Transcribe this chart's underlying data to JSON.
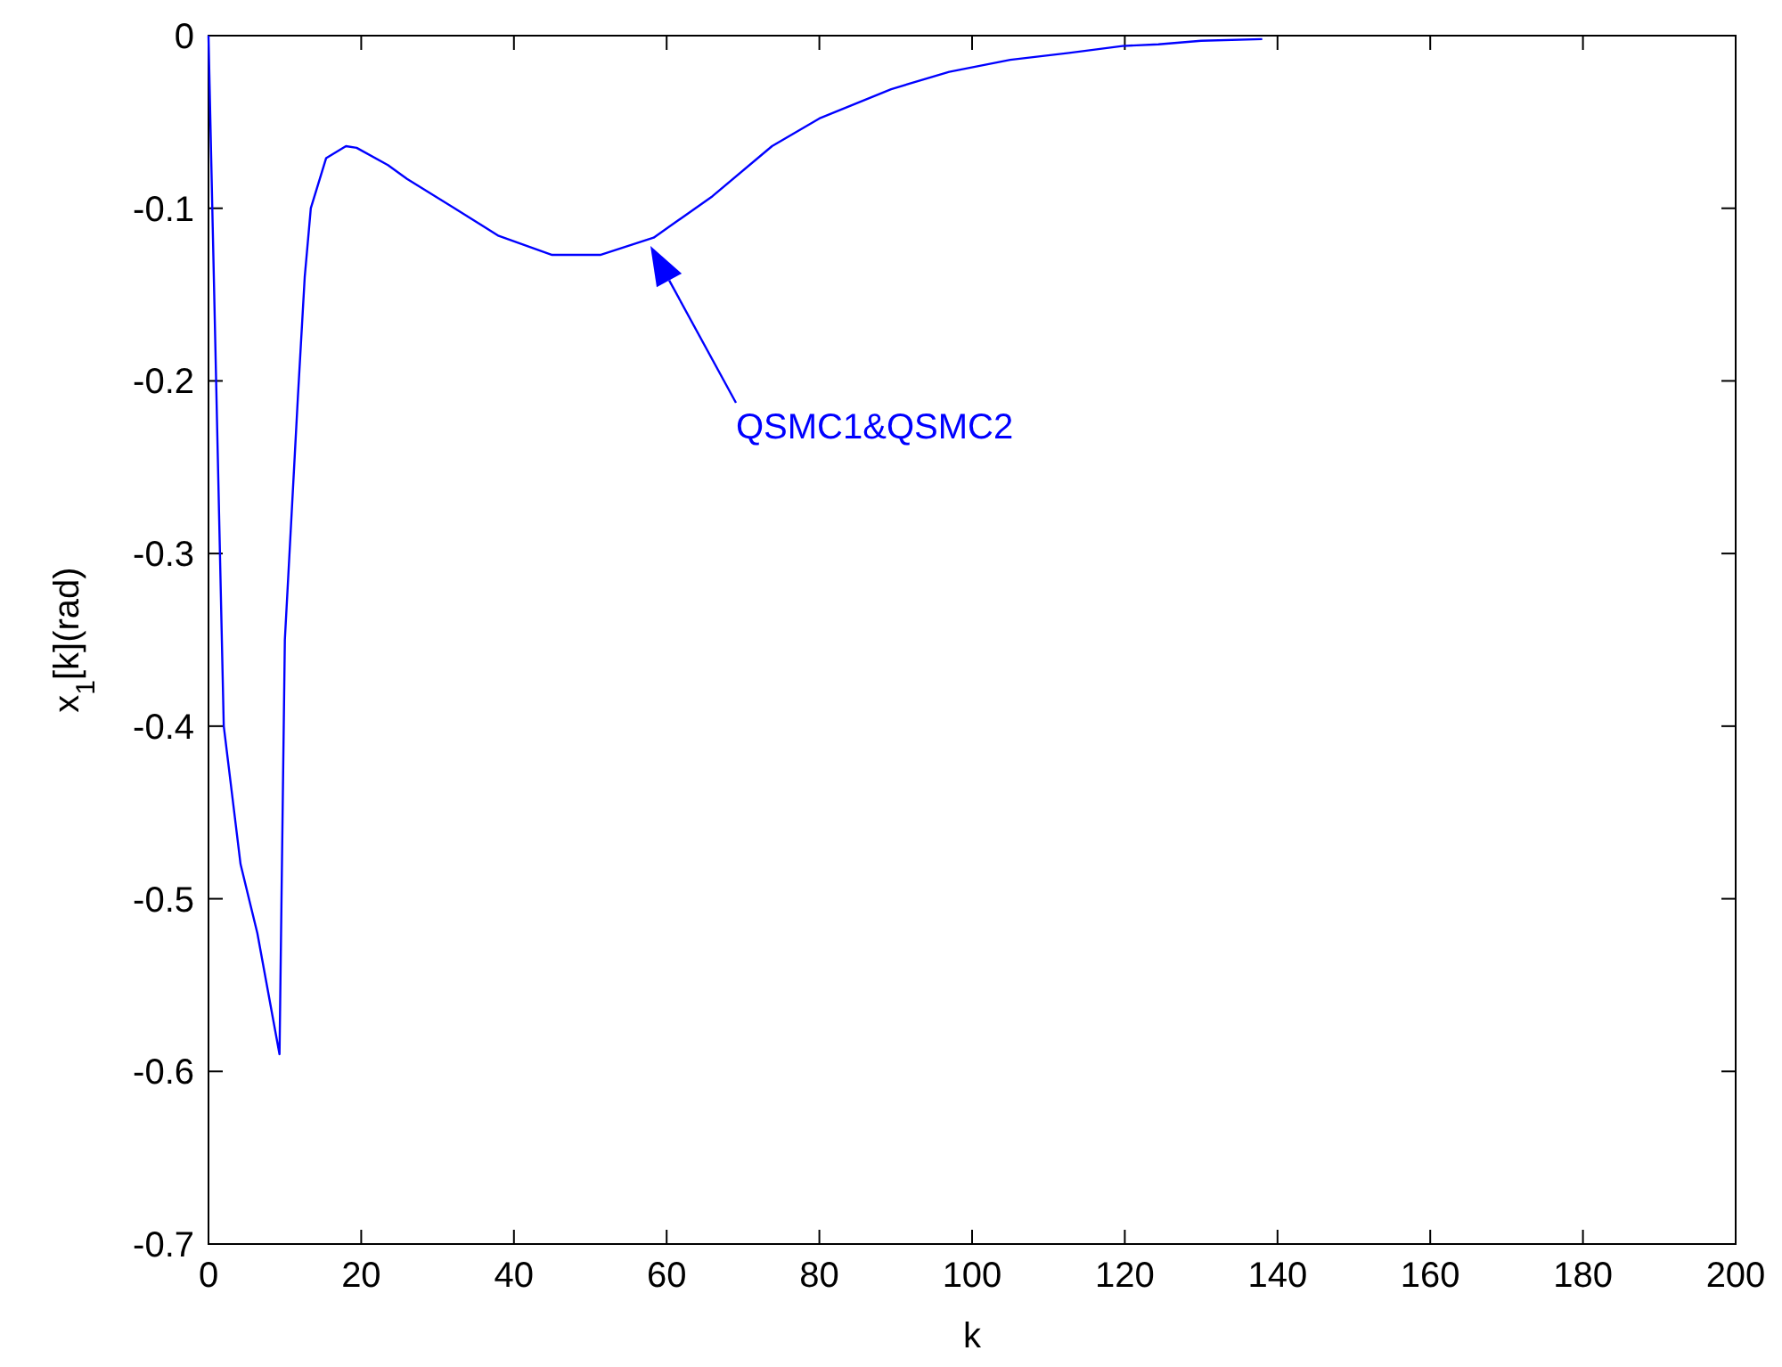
{
  "chart_data": {
    "type": "line",
    "xlabel": "k",
    "ylabel": "x$_{1}$[k](rad)",
    "x": [
      0,
      2,
      4.2,
      6.4,
      9.3,
      10,
      11.7,
      12.6,
      13.4,
      15.4,
      18,
      19.4,
      23.5,
      26,
      32.6,
      38,
      45,
      51.3,
      58.3,
      66,
      73.8,
      80,
      89.4,
      97,
      105,
      112.7,
      119.7,
      124.4,
      130,
      138
    ],
    "series": [
      {
        "color": "#0000ff",
        "values": [
          0,
          -0.4,
          -0.48,
          -0.52,
          -0.59,
          -0.35,
          -0.21,
          -0.14,
          -0.1,
          -0.071,
          -0.064,
          -0.065,
          -0.075,
          -0.083,
          -0.101,
          -0.116,
          -0.127,
          -0.127,
          -0.117,
          -0.093,
          -0.064,
          -0.048,
          -0.031,
          -0.021,
          -0.014,
          -0.01,
          -0.006,
          -0.005,
          -0.003,
          -0.002
        ]
      }
    ],
    "xlim": [
      0,
      200
    ],
    "xticks": [
      0,
      20,
      40,
      60,
      80,
      100,
      120,
      140,
      160,
      180,
      200
    ],
    "ylim": [
      -0.7,
      0
    ],
    "yticks": [
      -0.7,
      -0.6,
      -0.5,
      -0.4,
      -0.3,
      -0.2,
      -0.1,
      0
    ],
    "annotations": [
      "QSMC1&QSMC2"
    ],
    "grid": false,
    "line_style": "solid",
    "marker": "none"
  }
}
